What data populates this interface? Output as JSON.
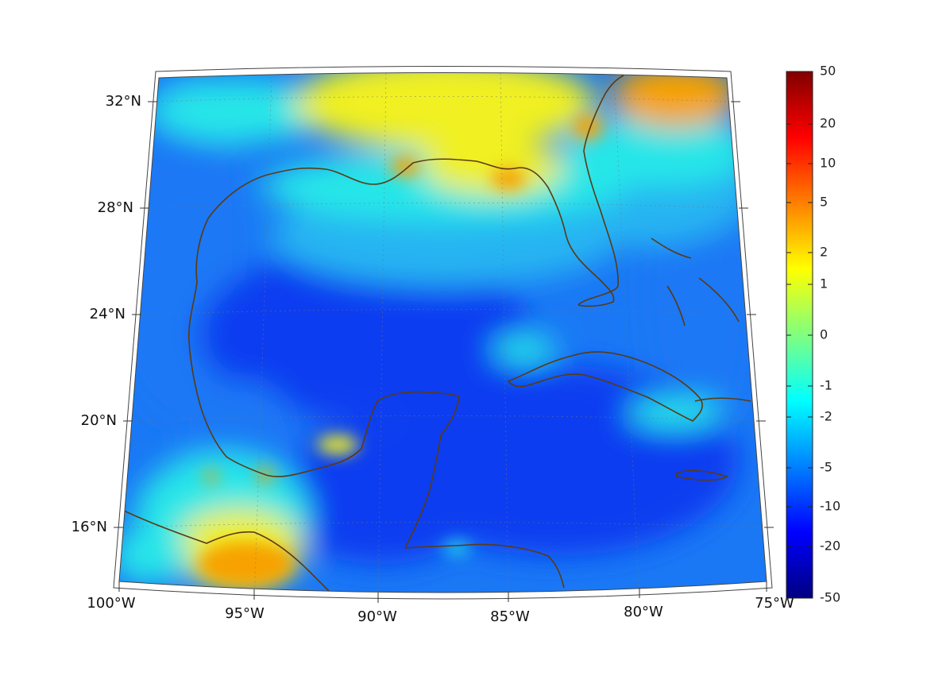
{
  "map": {
    "projection": "conic",
    "lon_labels": [
      "100°W",
      "95°W",
      "90°W",
      "85°W",
      "80°W",
      "75°W"
    ],
    "lat_labels": [
      "32°N",
      "28°N",
      "24°N",
      "20°N",
      "16°N"
    ],
    "coastline_color": "#5a3a12",
    "grid_color": "#777777",
    "field_colors": {
      "deep": "#0a3cf0",
      "mid": "#1a78f5",
      "light": "#28b4f2",
      "cyan": "#28e6e8",
      "yellow": "#f0f020",
      "orange": "#f7a200",
      "red": "#e83810"
    }
  },
  "colorbar": {
    "labels": [
      "50",
      "20",
      "10",
      "5",
      "2",
      "1",
      "0",
      "-1",
      "-2",
      "-5",
      "-10",
      "-20",
      "-50"
    ],
    "colors": [
      "#800000",
      "#ff0000",
      "#ff8000",
      "#ffff00",
      "#80ff80",
      "#00ffff",
      "#0080ff",
      "#0000ff",
      "#000080"
    ]
  }
}
